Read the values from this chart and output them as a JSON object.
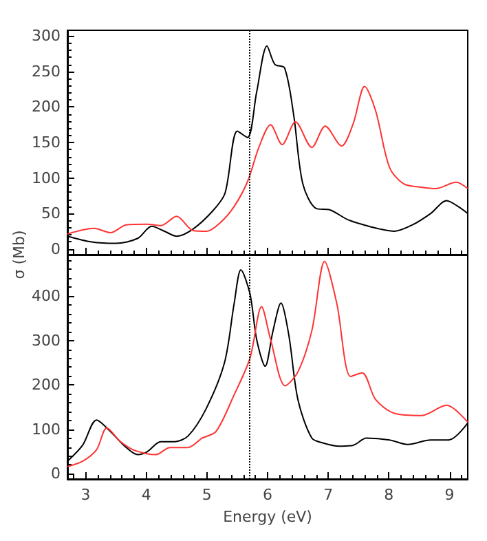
{
  "chart_data": [
    {
      "type": "line",
      "ylabel": "σ (Mb)",
      "xlim": [
        2.7,
        9.3
      ],
      "xticks": [
        3,
        4,
        5,
        6,
        7,
        8,
        9
      ],
      "ylim": [
        -8,
        308
      ],
      "yticks": [
        0,
        50,
        100,
        150,
        200,
        250,
        300
      ],
      "tick_labels": "y",
      "grid": false,
      "marker": "none",
      "line_style": "solid",
      "ref_lines": [
        {
          "axis": "x",
          "value": 5.7,
          "line_style": "dotted",
          "color": "#000000"
        }
      ],
      "series": [
        {
          "color": "#000000",
          "x": [
            2.7,
            3.1,
            3.5,
            3.86,
            4.09,
            4.3,
            4.5,
            4.77,
            5.1,
            5.3,
            5.5,
            5.67,
            5.82,
            5.99,
            6.12,
            6.28,
            6.43,
            6.58,
            6.8,
            7.03,
            7.33,
            7.63,
            7.86,
            8.09,
            8.39,
            8.69,
            8.95,
            9.14,
            9.3
          ],
          "values": [
            18,
            10,
            8,
            15,
            32,
            25,
            18,
            28,
            54,
            79,
            166,
            157,
            221,
            286,
            260,
            255,
            189,
            92,
            57,
            55,
            41,
            33,
            28,
            25,
            34,
            50,
            68,
            60,
            50
          ]
        },
        {
          "color": "#ff3333",
          "x": [
            2.7,
            3.14,
            3.41,
            3.67,
            4.01,
            4.24,
            4.5,
            4.77,
            5.0,
            5.22,
            5.45,
            5.67,
            5.86,
            6.05,
            6.24,
            6.46,
            6.73,
            6.95,
            7.22,
            7.41,
            7.6,
            7.78,
            8.01,
            8.24,
            8.54,
            8.77,
            9.11,
            9.3
          ],
          "values": [
            21,
            29,
            23,
            34,
            35,
            33,
            46,
            26,
            25,
            37,
            60,
            95,
            144,
            175,
            147,
            179,
            143,
            173,
            145,
            176,
            229,
            195,
            115,
            92,
            87,
            85,
            94,
            85
          ]
        }
      ]
    },
    {
      "type": "line",
      "xlabel": "Energy (eV)",
      "xlim": [
        2.7,
        9.3
      ],
      "xticks": [
        3,
        4,
        5,
        6,
        7,
        8,
        9
      ],
      "ylim": [
        -12,
        493
      ],
      "yticks": [
        0,
        100,
        200,
        300,
        400
      ],
      "grid": false,
      "marker": "none",
      "line_style": "solid",
      "ref_lines": [
        {
          "axis": "x",
          "value": 5.7,
          "line_style": "dotted",
          "color": "#000000"
        }
      ],
      "series": [
        {
          "color": "#000000",
          "x": [
            2.7,
            2.95,
            3.18,
            3.41,
            3.63,
            3.86,
            4.01,
            4.24,
            4.46,
            4.69,
            4.99,
            5.29,
            5.45,
            5.56,
            5.71,
            5.82,
            5.96,
            6.09,
            6.22,
            6.35,
            6.5,
            6.73,
            6.92,
            7.18,
            7.41,
            7.63,
            8.01,
            8.31,
            8.69,
            8.99,
            9.3
          ],
          "values": [
            28,
            64,
            121,
            95,
            64,
            43,
            49,
            72,
            72,
            85,
            147,
            250,
            384,
            459,
            405,
            302,
            242,
            322,
            384,
            312,
            167,
            80,
            69,
            62,
            64,
            80,
            76,
            66,
            76,
            76,
            114
          ]
        },
        {
          "color": "#ff3333",
          "x": [
            2.7,
            2.95,
            3.18,
            3.35,
            3.56,
            3.78,
            4.01,
            4.16,
            4.39,
            4.69,
            4.92,
            5.15,
            5.45,
            5.71,
            5.9,
            6.05,
            6.29,
            6.5,
            6.73,
            6.94,
            7.14,
            7.37,
            7.56,
            7.78,
            8.09,
            8.54,
            8.95,
            9.3
          ],
          "values": [
            16,
            28,
            54,
            103,
            74,
            54,
            45,
            43,
            59,
            59,
            80,
            95,
            178,
            260,
            376,
            302,
            198,
            229,
            322,
            478,
            384,
            219,
            227,
            167,
            136,
            131,
            154,
            116
          ]
        }
      ]
    }
  ]
}
